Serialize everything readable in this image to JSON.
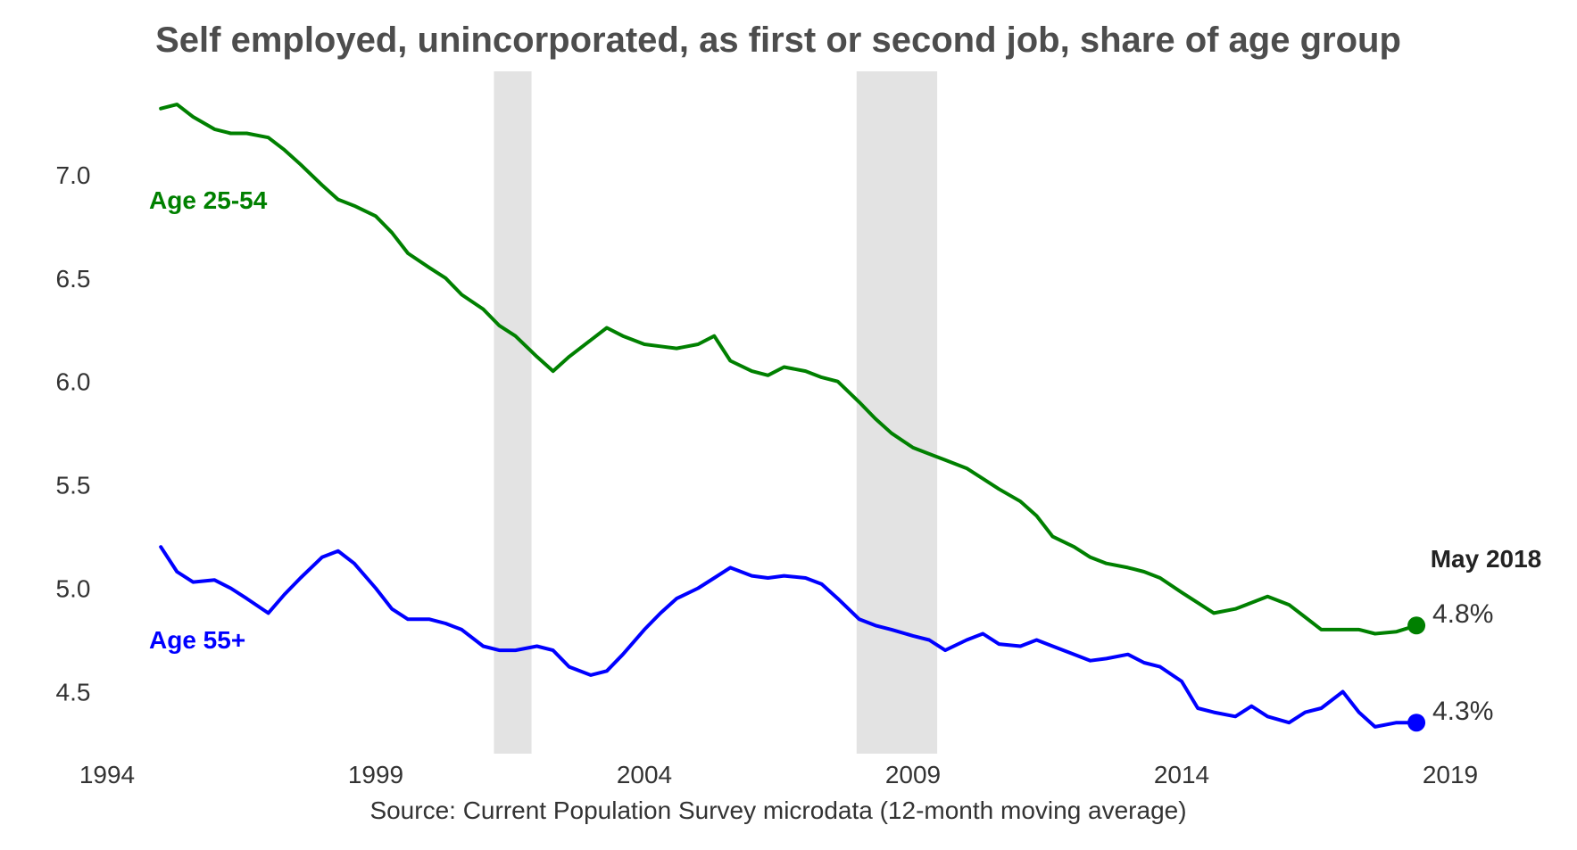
{
  "chart_data": {
    "type": "line",
    "title": "Self employed, unincorporated, as first or second job, share of age group",
    "source": "Source: Current Population Survey microdata (12-month moving average)",
    "xlim": [
      1994,
      2019
    ],
    "ylim": [
      4.2,
      7.5
    ],
    "x_ticks": [
      "1994",
      "1999",
      "2004",
      "2009",
      "2014",
      "2019"
    ],
    "y_ticks": [
      "4.5",
      "5.0",
      "5.5",
      "6.0",
      "6.5",
      "7.0"
    ],
    "grid": false,
    "recessions": [
      [
        2001.2,
        2001.9
      ],
      [
        2007.95,
        2009.45
      ]
    ],
    "latest_date_label": "May 2018",
    "series": [
      {
        "name": "Age 25-54",
        "color": "#008000",
        "end_label": "4.8%",
        "x": [
          1995.0,
          1995.3,
          1995.6,
          1996.0,
          1996.3,
          1996.6,
          1997.0,
          1997.3,
          1997.6,
          1998.0,
          1998.3,
          1998.6,
          1999.0,
          1999.3,
          1999.6,
          2000.0,
          2000.3,
          2000.6,
          2001.0,
          2001.3,
          2001.6,
          2002.0,
          2002.3,
          2002.6,
          2003.0,
          2003.3,
          2003.6,
          2004.0,
          2004.3,
          2004.6,
          2005.0,
          2005.3,
          2005.6,
          2006.0,
          2006.3,
          2006.6,
          2007.0,
          2007.3,
          2007.6,
          2008.0,
          2008.3,
          2008.6,
          2009.0,
          2009.3,
          2009.6,
          2010.0,
          2010.3,
          2010.6,
          2011.0,
          2011.3,
          2011.6,
          2012.0,
          2012.3,
          2012.6,
          2013.0,
          2013.3,
          2013.6,
          2014.0,
          2014.3,
          2014.6,
          2015.0,
          2015.3,
          2015.6,
          2016.0,
          2016.3,
          2016.6,
          2017.0,
          2017.3,
          2017.6,
          2018.0,
          2018.37
        ],
        "values": [
          7.32,
          7.34,
          7.28,
          7.22,
          7.2,
          7.2,
          7.18,
          7.12,
          7.05,
          6.95,
          6.88,
          6.85,
          6.8,
          6.72,
          6.62,
          6.55,
          6.5,
          6.42,
          6.35,
          6.27,
          6.22,
          6.12,
          6.05,
          6.12,
          6.2,
          6.26,
          6.22,
          6.18,
          6.17,
          6.16,
          6.18,
          6.22,
          6.1,
          6.05,
          6.03,
          6.07,
          6.05,
          6.02,
          6.0,
          5.9,
          5.82,
          5.75,
          5.68,
          5.65,
          5.62,
          5.58,
          5.53,
          5.48,
          5.42,
          5.35,
          5.25,
          5.2,
          5.15,
          5.12,
          5.1,
          5.08,
          5.05,
          4.98,
          4.93,
          4.88,
          4.9,
          4.93,
          4.96,
          4.92,
          4.86,
          4.8,
          4.8,
          4.8,
          4.78,
          4.79,
          4.82
        ]
      },
      {
        "name": "Age 55+",
        "color": "#0000ff",
        "end_label": "4.3%",
        "x": [
          1995.0,
          1995.3,
          1995.6,
          1996.0,
          1996.3,
          1996.6,
          1997.0,
          1997.3,
          1997.6,
          1998.0,
          1998.3,
          1998.6,
          1999.0,
          1999.3,
          1999.6,
          2000.0,
          2000.3,
          2000.6,
          2001.0,
          2001.3,
          2001.6,
          2002.0,
          2002.3,
          2002.6,
          2003.0,
          2003.3,
          2003.6,
          2004.0,
          2004.3,
          2004.6,
          2005.0,
          2005.3,
          2005.6,
          2006.0,
          2006.3,
          2006.6,
          2007.0,
          2007.3,
          2007.6,
          2008.0,
          2008.3,
          2008.6,
          2009.0,
          2009.3,
          2009.6,
          2010.0,
          2010.3,
          2010.6,
          2011.0,
          2011.3,
          2011.6,
          2012.0,
          2012.3,
          2012.6,
          2013.0,
          2013.3,
          2013.6,
          2014.0,
          2014.3,
          2014.6,
          2015.0,
          2015.3,
          2015.6,
          2016.0,
          2016.3,
          2016.6,
          2017.0,
          2017.3,
          2017.6,
          2018.0,
          2018.37
        ],
        "values": [
          5.2,
          5.08,
          5.03,
          5.04,
          5.0,
          4.95,
          4.88,
          4.97,
          5.05,
          5.15,
          5.18,
          5.12,
          5.0,
          4.9,
          4.85,
          4.85,
          4.83,
          4.8,
          4.72,
          4.7,
          4.7,
          4.72,
          4.7,
          4.62,
          4.58,
          4.6,
          4.68,
          4.8,
          4.88,
          4.95,
          5.0,
          5.05,
          5.1,
          5.06,
          5.05,
          5.06,
          5.05,
          5.02,
          4.95,
          4.85,
          4.82,
          4.8,
          4.77,
          4.75,
          4.7,
          4.75,
          4.78,
          4.73,
          4.72,
          4.75,
          4.72,
          4.68,
          4.65,
          4.66,
          4.68,
          4.64,
          4.62,
          4.55,
          4.42,
          4.4,
          4.38,
          4.43,
          4.38,
          4.35,
          4.4,
          4.42,
          4.5,
          4.4,
          4.33,
          4.35,
          4.35
        ]
      }
    ]
  }
}
